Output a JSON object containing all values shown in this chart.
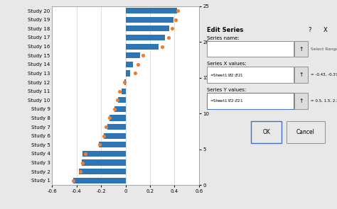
{
  "studies": [
    "Study 1",
    "Study 2",
    "Study 3",
    "Study 4",
    "Study 5",
    "Study 6",
    "Study 7",
    "Study 8",
    "Study 9",
    "Study 10",
    "Study 11",
    "Study 12",
    "Study 13",
    "Study 14",
    "Study 15",
    "Study 16",
    "Study 17",
    "Study 18",
    "Study 19",
    "Study 20"
  ],
  "bar_values": [
    -0.43,
    -0.38,
    -0.36,
    -0.35,
    -0.22,
    -0.18,
    -0.15,
    -0.13,
    -0.09,
    -0.06,
    -0.03,
    -0.01,
    0.04,
    0.06,
    0.12,
    0.27,
    0.32,
    0.36,
    0.39,
    0.42
  ],
  "dot_x": [
    -0.43,
    -0.37,
    -0.35,
    -0.33,
    -0.21,
    -0.18,
    -0.16,
    -0.13,
    -0.09,
    -0.07,
    -0.05,
    -0.01,
    0.08,
    0.1,
    0.14,
    0.3,
    0.35,
    0.38,
    0.41,
    0.43
  ],
  "dot_y": [
    0.5,
    1.5,
    2.5,
    3.5,
    4.5,
    5.5,
    6.5,
    7.5,
    8.5,
    9.5,
    10.5,
    11.5,
    12.5,
    13.5,
    14.5,
    15.5,
    16.5,
    17.5,
    18.5,
    19.5
  ],
  "bar_color": "#2e75b6",
  "dot_color": "#ed7d31",
  "bg_color": "#e8e8e8",
  "plot_bg_color": "#ffffff",
  "xlim": [
    -0.6,
    0.6
  ],
  "ylim_main": [
    0,
    20
  ],
  "ylim_right": [
    0,
    25
  ],
  "ytick_right": [
    0,
    5,
    10,
    15,
    20,
    25
  ],
  "xticks": [
    -0.6,
    -0.4,
    -0.2,
    0.0,
    0.2,
    0.4,
    0.6
  ],
  "xtick_labels": [
    "-0.6",
    "-0.4",
    "-0.2",
    "0",
    "0.2",
    "0.4",
    "0.6"
  ],
  "grid_color": "#d0d0d0",
  "dialog": {
    "title": "Edit Series",
    "field1_label": "Series name:",
    "field2_label": "Series X values:",
    "field2_value": "=Sheet1!$B$2:$B$21",
    "field2_hint": "= -0.43, -0.37, ...",
    "field3_label": "Series Y values:",
    "field3_value": "=Sheet1!$E$2:$E$21",
    "field3_hint": "= 0.5, 1.5, 2.5...",
    "ok_text": "OK",
    "cancel_text": "Cancel",
    "q_mark": "?",
    "x_mark": "X",
    "select_range": "Select Range"
  }
}
